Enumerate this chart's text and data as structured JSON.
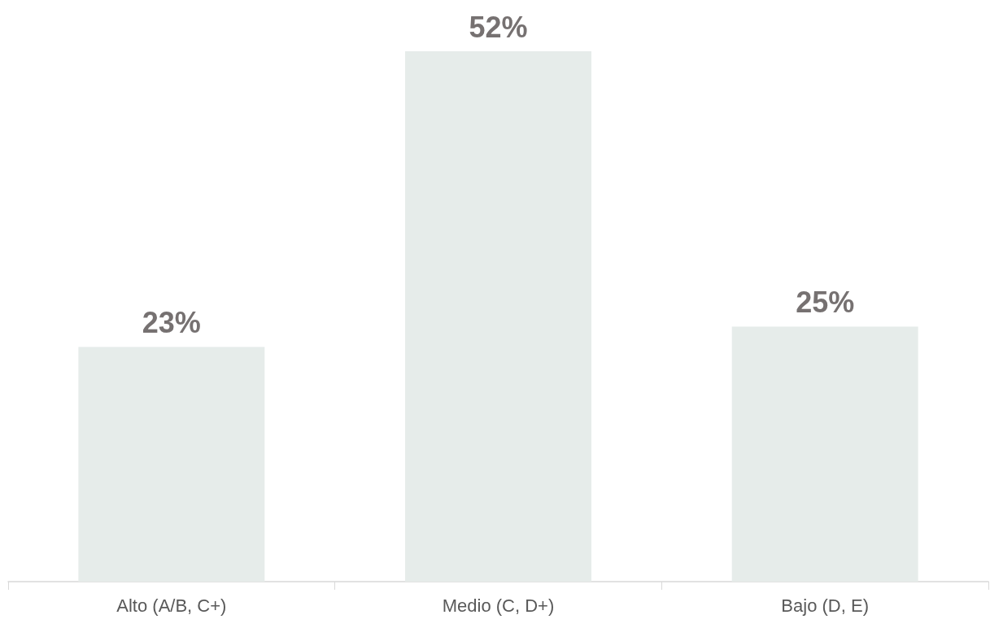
{
  "chart_data": {
    "type": "bar",
    "categories": [
      "Alto (A/B, C+)",
      "Medio (C, D+)",
      "Bajo (D, E)"
    ],
    "values": [
      23,
      52,
      25
    ],
    "value_labels": [
      "23%",
      "52%",
      "25%"
    ],
    "color": "#e6ecea"
  }
}
